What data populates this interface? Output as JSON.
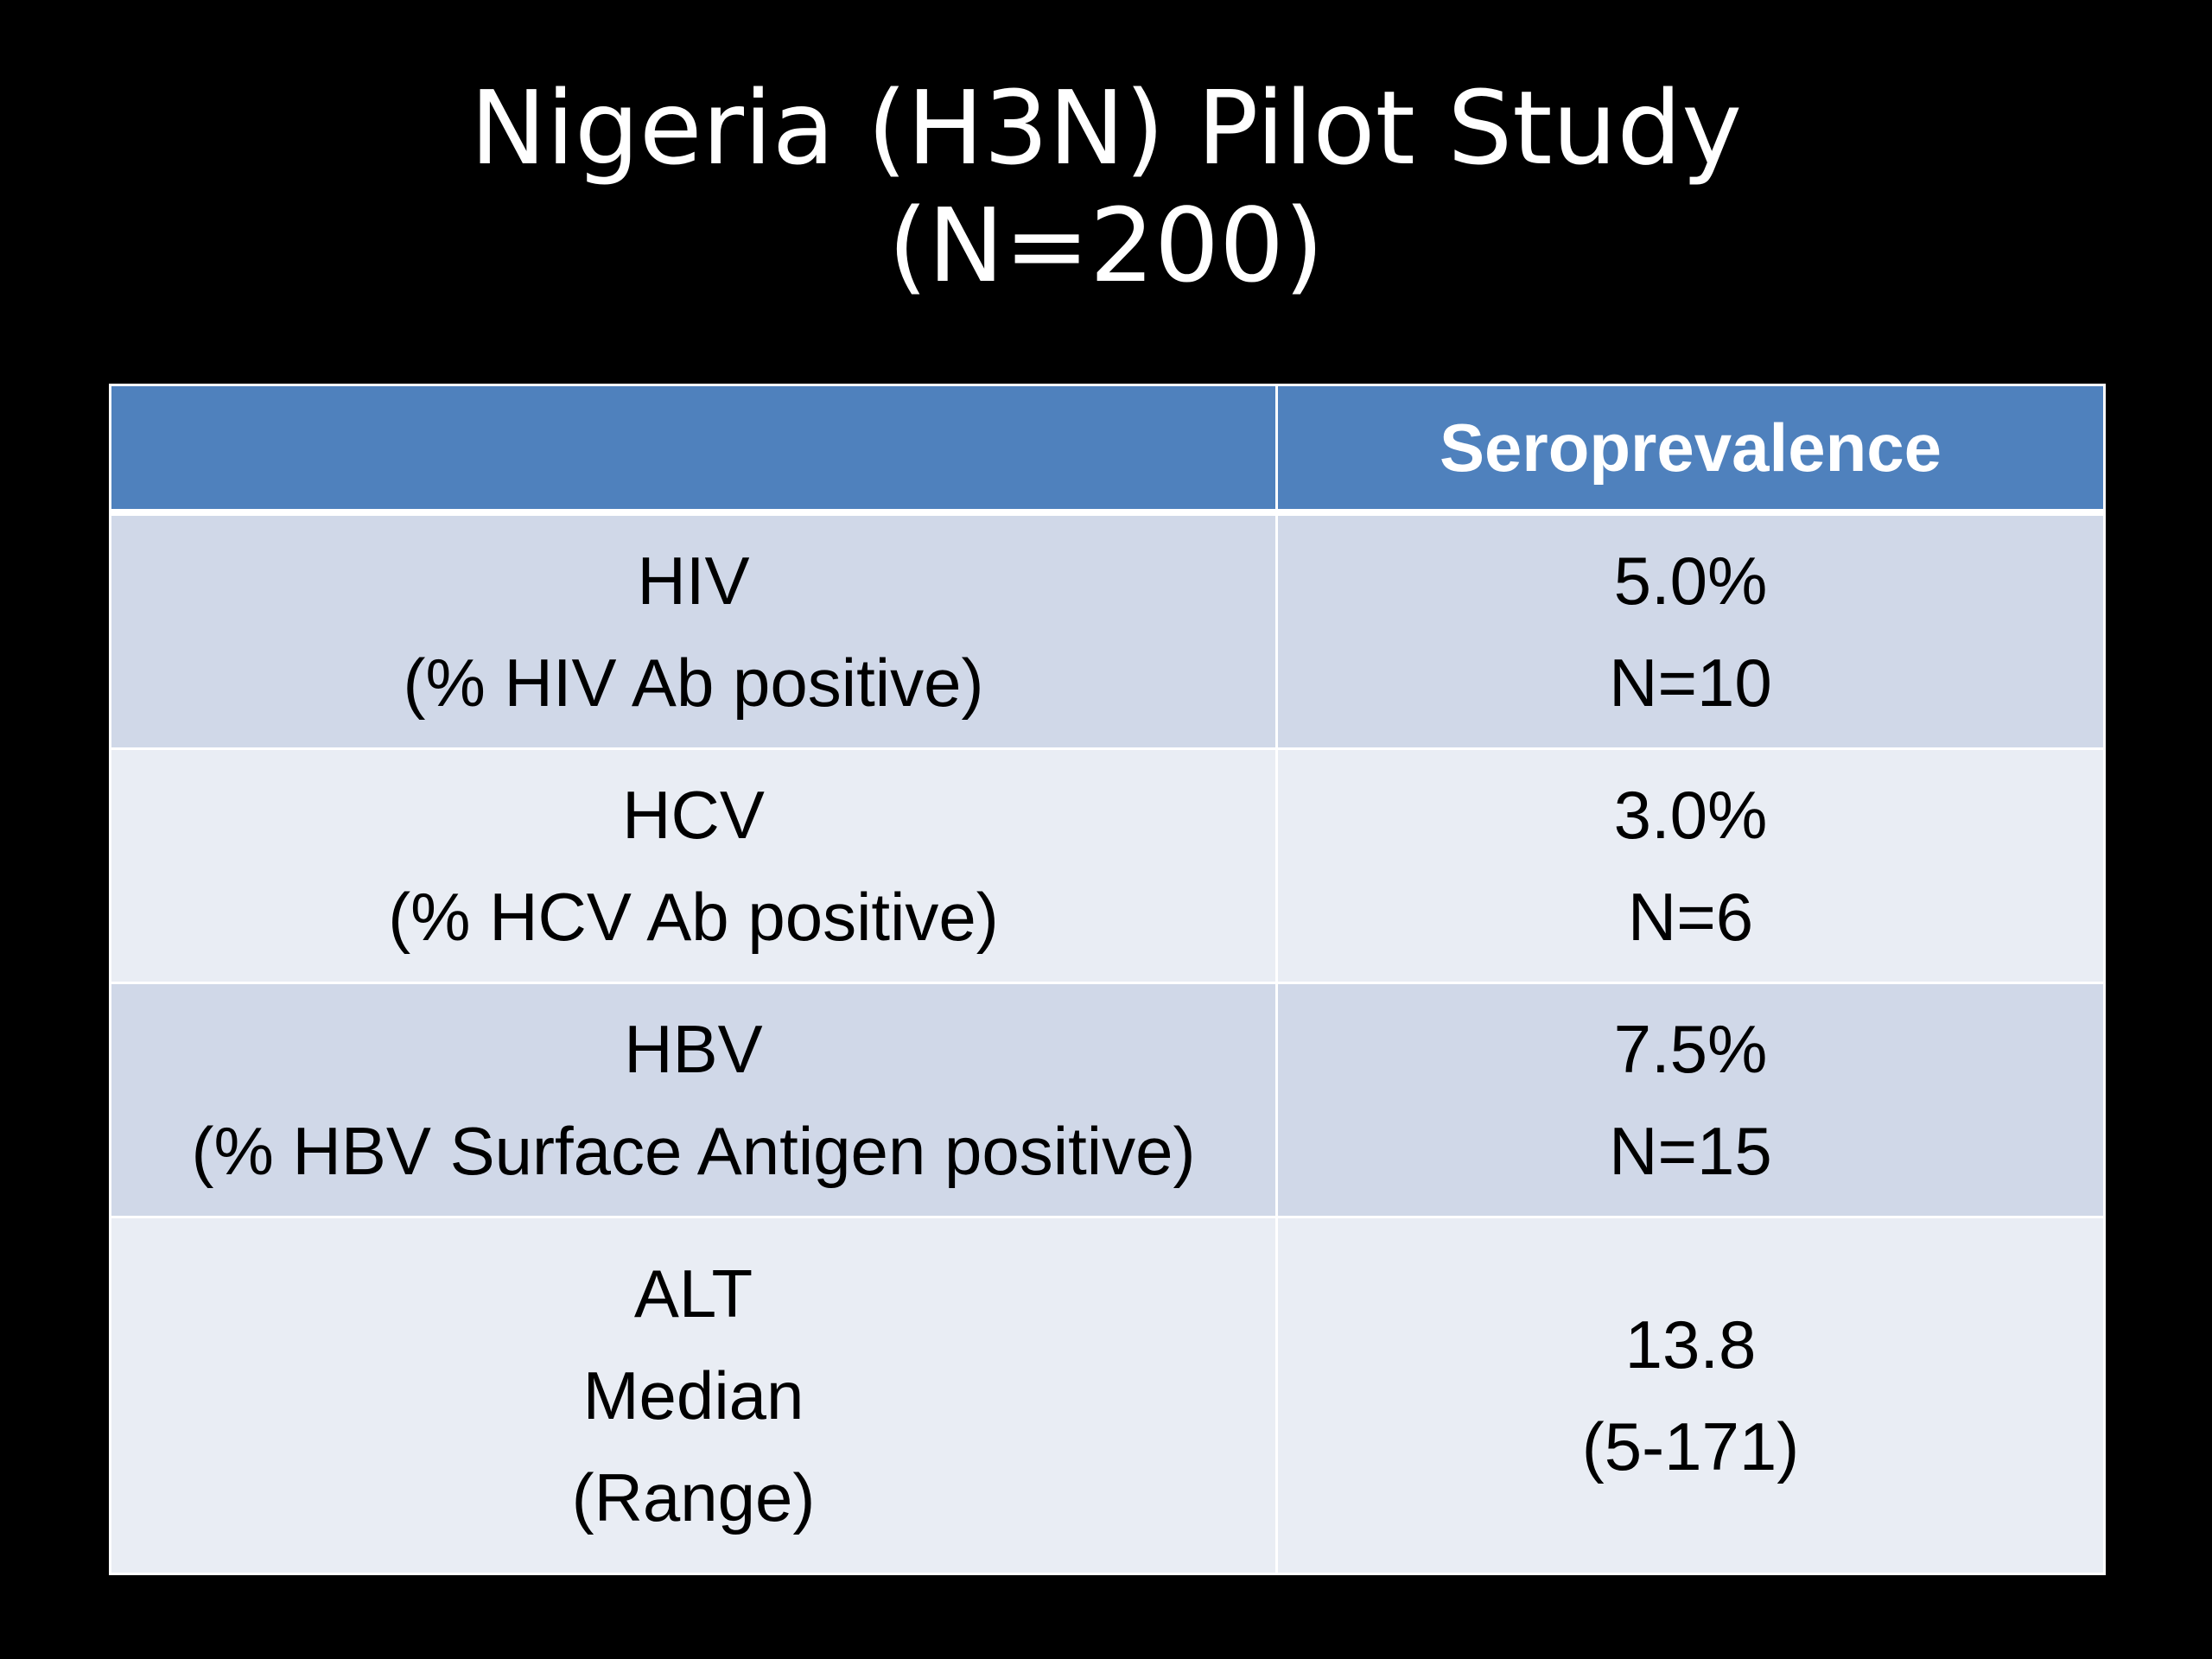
{
  "title": {
    "line1": "Nigeria (H3N) Pilot Study",
    "line2": "(N=200)"
  },
  "table": {
    "header": {
      "col1": "",
      "col2": "Seroprevalence"
    },
    "rows": [
      {
        "label": [
          "HIV",
          "(% HIV Ab positive)"
        ],
        "value": [
          "5.0%",
          "N=10"
        ]
      },
      {
        "label": [
          "HCV",
          "(% HCV Ab positive)"
        ],
        "value": [
          "3.0%",
          "N=6"
        ]
      },
      {
        "label": [
          "HBV",
          "(% HBV Surface Antigen positive)"
        ],
        "value": [
          "7.5%",
          "N=15"
        ]
      },
      {
        "label": [
          "ALT",
          "Median",
          "(Range)"
        ],
        "value": [
          "13.8",
          "(5-171)"
        ]
      }
    ]
  },
  "colors": {
    "background": "#000000",
    "header": "#4f81bd",
    "row_band_dark": "#d0d8e8",
    "row_band_light": "#e9edf4"
  }
}
